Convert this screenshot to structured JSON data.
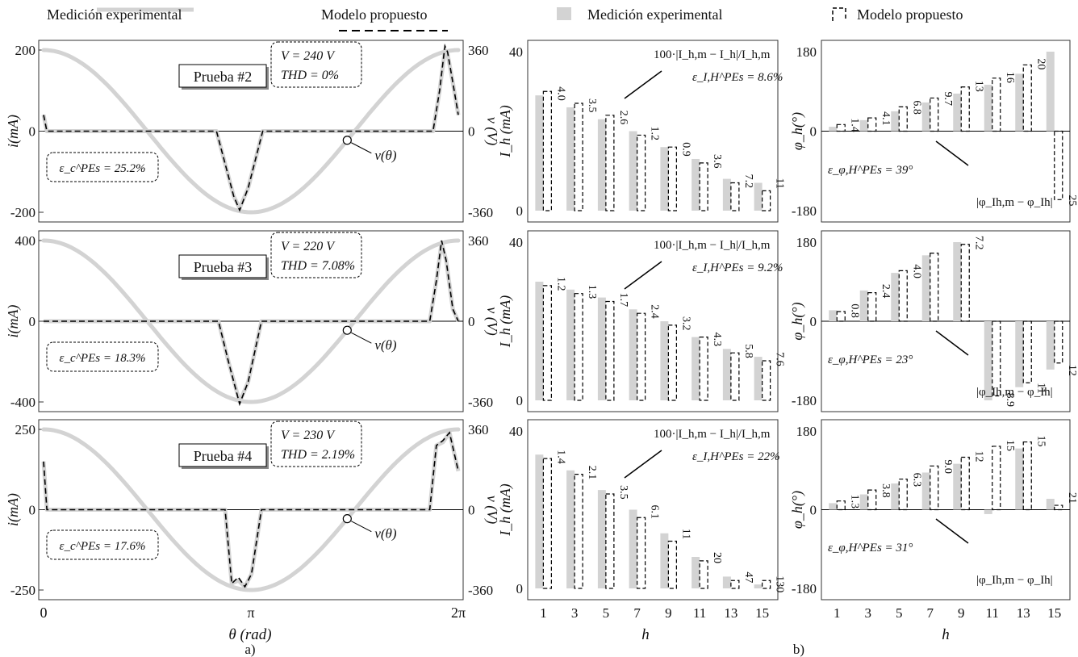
{
  "legend": {
    "a_measured": "Medición experimental",
    "a_model": "Modelo  propuesto",
    "b_measured": "Medición experimental",
    "b_model": "Modelo  propuesto"
  },
  "captions": {
    "a": "a)",
    "b": "b)"
  },
  "panel_a": {
    "xlabel": "θ (rad)",
    "xticks": [
      "0",
      "π",
      "2π"
    ],
    "ylabel_left": "i(mA)",
    "ylabel_right": "v (V)",
    "v_label": "v(θ)",
    "v_range": [
      -360,
      360
    ]
  },
  "panel_b": {
    "xlabel": "h",
    "harmonics": [
      1,
      3,
      5,
      7,
      9,
      11,
      13,
      15
    ]
  },
  "colors": {
    "measured": "#d3d3d3",
    "model": "#000000",
    "axis": "#333333"
  },
  "rows": [
    {
      "test_label": "Prueba #2",
      "voltage": "V = 240 V",
      "thd": "THD = 0%",
      "error_current": "ε_c^PEs = 25.2%",
      "i_ylim": [
        -200,
        200
      ],
      "i_ticks": [
        "200",
        "0",
        "-200"
      ],
      "mag_formula": "100·|I_h,m − I_h|/I_h,m",
      "mag_error": "ε_I,H^PEs = 8.6%",
      "phase_formula": "|φ_Ih,m − φ_Ih|",
      "phase_error": "ε_φ,H^PEs = 39°"
    },
    {
      "test_label": "Prueba #3",
      "voltage": "V = 220 V",
      "thd": "THD = 7.08%",
      "error_current": "ε_c^PEs = 18.3%",
      "i_ylim": [
        -400,
        400
      ],
      "i_ticks": [
        "400",
        "0",
        "-400"
      ],
      "mag_formula": "100·|I_h,m − I_h|/I_h,m",
      "mag_error": "ε_I,H^PEs = 9.2%",
      "phase_formula": "|φ_Ih,m − φ_Ih|",
      "phase_error": "ε_φ,H^PEs = 23°"
    },
    {
      "test_label": "Prueba #4",
      "voltage": "V = 230 V",
      "thd": "THD = 2.19%",
      "error_current": "ε_c^PEs = 17.6%",
      "i_ylim": [
        -250,
        250
      ],
      "i_ticks": [
        "250",
        "0",
        "-250"
      ],
      "mag_formula": "100·|I_h,m − I_h|/I_h,m",
      "mag_error": "ε_I,H^PEs = 22%",
      "phase_formula": "|φ_Ih,m − φ_Ih|",
      "phase_error": "ε_φ,H^PEs = 31°"
    }
  ],
  "chart_data": [
    {
      "type": "line",
      "title": "Prueba #2",
      "xlabel": "θ (rad)",
      "ylabel": "i(mA)",
      "x": [
        0,
        0.05,
        0.1,
        0.5,
        1.0,
        1.5,
        2.0,
        2.5,
        2.62,
        2.88,
        2.97,
        3.1,
        3.32,
        3.5,
        4.0,
        4.5,
        5.0,
        5.5,
        5.9,
        6.0,
        6.08,
        6.12,
        6.2,
        6.283
      ],
      "series": [
        {
          "name": "Medición experimental",
          "values": [
            40,
            0,
            0,
            0,
            0,
            0,
            0,
            0,
            0,
            -160,
            -190,
            -140,
            0,
            0,
            0,
            0,
            0,
            0,
            0,
            100,
            200,
            190,
            120,
            40
          ]
        },
        {
          "name": "Modelo  propuesto",
          "values": [
            40,
            0,
            0,
            0,
            0,
            0,
            0,
            0,
            0,
            -160,
            -195,
            -140,
            0,
            0,
            0,
            0,
            0,
            0,
            0,
            100,
            210,
            195,
            120,
            40
          ]
        }
      ],
      "ylim": [
        -200,
        200
      ]
    },
    {
      "type": "line",
      "title": "Prueba #3",
      "xlabel": "θ (rad)",
      "ylabel": "i(mA)",
      "x": [
        0,
        0.05,
        0.1,
        0.5,
        1.0,
        1.5,
        2.0,
        2.5,
        2.65,
        2.8,
        2.97,
        3.1,
        3.3,
        3.5,
        4.0,
        4.5,
        5.0,
        5.5,
        5.85,
        5.95,
        6.03,
        6.1,
        6.2,
        6.283
      ],
      "series": [
        {
          "name": "Medición experimental",
          "values": [
            0,
            0,
            0,
            0,
            0,
            0,
            0,
            0,
            0,
            -200,
            -400,
            -300,
            0,
            0,
            0,
            0,
            0,
            0,
            0,
            200,
            390,
            300,
            60,
            0
          ]
        },
        {
          "name": "Modelo  propuesto",
          "values": [
            0,
            0,
            0,
            0,
            0,
            0,
            0,
            0,
            0,
            -200,
            -410,
            -300,
            0,
            0,
            0,
            0,
            0,
            0,
            0,
            200,
            400,
            300,
            60,
            0
          ]
        }
      ],
      "ylim": [
        -400,
        400
      ]
    },
    {
      "type": "line",
      "title": "Prueba #4",
      "xlabel": "θ (rad)",
      "ylabel": "i(mA)",
      "x": [
        0,
        0.05,
        0.1,
        0.5,
        1.0,
        1.5,
        2.0,
        2.5,
        2.75,
        2.85,
        2.95,
        3.05,
        3.15,
        3.3,
        3.5,
        4.0,
        4.5,
        5.0,
        5.5,
        5.85,
        5.95,
        6.05,
        6.15,
        6.283
      ],
      "series": [
        {
          "name": "Medición experimental",
          "values": [
            150,
            0,
            0,
            0,
            0,
            0,
            0,
            0,
            0,
            -230,
            -220,
            -240,
            -200,
            0,
            0,
            0,
            0,
            0,
            0,
            0,
            200,
            210,
            240,
            120
          ]
        },
        {
          "name": "Modelo  propuesto",
          "values": [
            150,
            0,
            0,
            0,
            0,
            0,
            0,
            0,
            0,
            -230,
            -210,
            -240,
            -200,
            0,
            0,
            0,
            0,
            0,
            0,
            0,
            200,
            215,
            240,
            120
          ]
        }
      ],
      "ylim": [
        -250,
        250
      ]
    },
    {
      "type": "bar",
      "xlabel": "h",
      "ylabel": "I_h (mA)",
      "categories": [
        "1",
        "3",
        "5",
        "7",
        "9",
        "11",
        "13",
        "15"
      ],
      "series": [
        {
          "name": "Medición experimental",
          "values": [
            29,
            26,
            23,
            20,
            16,
            13,
            8,
            7
          ]
        },
        {
          "name": "Modelo  propuesto",
          "values": [
            30,
            27,
            24,
            19,
            16,
            12,
            7,
            5
          ]
        }
      ],
      "data_labels": [
        "4.0",
        "3.5",
        "2.6",
        "1.2",
        "0.9",
        "3.6",
        "7.2",
        "11"
      ],
      "ylim": [
        0,
        40
      ]
    },
    {
      "type": "bar",
      "xlabel": "h",
      "ylabel": "I_h (mA)",
      "categories": [
        "1",
        "3",
        "5",
        "7",
        "9",
        "11",
        "13",
        "15"
      ],
      "series": [
        {
          "name": "Medición experimental",
          "values": [
            30,
            28,
            26,
            23,
            20,
            16,
            13,
            11
          ]
        },
        {
          "name": "Modelo  propuesto",
          "values": [
            29,
            27,
            25,
            22,
            19,
            16,
            12,
            10
          ]
        }
      ],
      "data_labels": [
        "1.2",
        "1.3",
        "1.7",
        "2.4",
        "3.2",
        "4.3",
        "5.8",
        "7.6"
      ],
      "ylim": [
        0,
        40
      ]
    },
    {
      "type": "bar",
      "xlabel": "h",
      "ylabel": "I_h (mA)",
      "categories": [
        "1",
        "3",
        "5",
        "7",
        "9",
        "11",
        "13",
        "15"
      ],
      "series": [
        {
          "name": "Medición experimental",
          "values": [
            34,
            30,
            25,
            20,
            14,
            8,
            3,
            1
          ]
        },
        {
          "name": "Modelo  propuesto",
          "values": [
            33,
            29,
            24,
            18,
            12,
            7,
            2,
            2
          ]
        }
      ],
      "data_labels": [
        "1.4",
        "2.1",
        "3.5",
        "6.1",
        "11",
        "20",
        "47",
        "130"
      ],
      "ylim": [
        0,
        40
      ]
    },
    {
      "type": "bar",
      "xlabel": "h",
      "ylabel": "φ_h(°)",
      "categories": [
        "1",
        "3",
        "5",
        "7",
        "9",
        "11",
        "13",
        "15"
      ],
      "series": [
        {
          "name": "Medición experimental",
          "values": [
            10,
            25,
            45,
            65,
            85,
            105,
            130,
            180
          ]
        },
        {
          "name": "Modelo  propuesto",
          "values": [
            15,
            30,
            55,
            75,
            100,
            120,
            150,
            -155
          ]
        }
      ],
      "data_labels": [
        "1.4",
        "4.1",
        "6.8",
        "9.7",
        "13",
        "16",
        "20",
        "25"
      ],
      "ylim": [
        -180,
        180
      ]
    },
    {
      "type": "bar",
      "xlabel": "h",
      "ylabel": "φ_h(°)",
      "categories": [
        "1",
        "3",
        "5",
        "7",
        "9",
        "11",
        "13",
        "15"
      ],
      "series": [
        {
          "name": "Medición experimental",
          "values": [
            25,
            70,
            110,
            150,
            180,
            -180,
            -150,
            -110
          ]
        },
        {
          "name": "Modelo  propuesto",
          "values": [
            22,
            65,
            115,
            155,
            175,
            -170,
            -140,
            -95
          ]
        }
      ],
      "data_labels": [
        "0.8",
        "2.4",
        "4.0",
        "",
        "7.2",
        "8.9",
        "11",
        "12"
      ],
      "ylim": [
        -180,
        180
      ]
    },
    {
      "type": "bar",
      "xlabel": "h",
      "ylabel": "φ_h(°)",
      "categories": [
        "1",
        "3",
        "5",
        "7",
        "9",
        "11",
        "13",
        "15"
      ],
      "series": [
        {
          "name": "Medición experimental",
          "values": [
            15,
            35,
            60,
            85,
            105,
            -10,
            140,
            25
          ]
        },
        {
          "name": "Modelo  propuesto",
          "values": [
            20,
            45,
            70,
            100,
            120,
            145,
            155,
            10
          ]
        }
      ],
      "data_labels": [
        "1.3",
        "3.8",
        "6.3",
        "9.0",
        "12",
        "15",
        "15",
        "21"
      ],
      "ylim": [
        -180,
        180
      ]
    }
  ]
}
